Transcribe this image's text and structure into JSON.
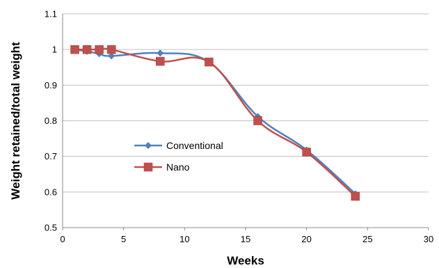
{
  "chart_data": {
    "type": "line",
    "title": "",
    "xlabel": "Weeks",
    "ylabel": "Weight retained/total weight",
    "xlim": [
      0,
      30
    ],
    "ylim": [
      0.5,
      1.1
    ],
    "xticks": [
      "0",
      "5",
      "10",
      "15",
      "20",
      "25",
      "30"
    ],
    "yticks": [
      "0.5",
      "0.6",
      "0.7",
      "0.8",
      "0.9",
      "1",
      "1.1"
    ],
    "grid": "horizontal",
    "legend": "left-center",
    "series": [
      {
        "name": "Conventional",
        "color": "#4F81BD",
        "marker": "diamond",
        "x": [
          1,
          2,
          3,
          4,
          8,
          12,
          16,
          20,
          24
        ],
        "y": [
          1.0,
          0.995,
          0.988,
          0.982,
          0.99,
          0.965,
          0.812,
          0.718,
          0.595
        ]
      },
      {
        "name": "Nano",
        "color": "#C0504D",
        "marker": "square",
        "x": [
          1,
          2,
          3,
          4,
          8,
          12,
          16,
          20,
          24
        ],
        "y": [
          1.0,
          1.0,
          1.0,
          1.0,
          0.967,
          0.965,
          0.8,
          0.712,
          0.588
        ]
      }
    ]
  }
}
